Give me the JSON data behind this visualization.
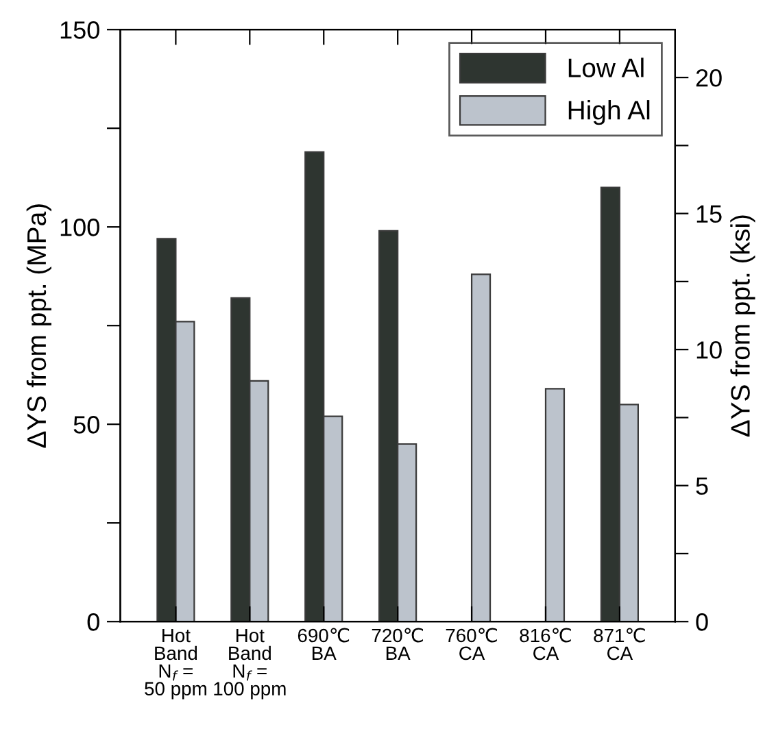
{
  "chart_data": {
    "type": "bar",
    "ylabel": "ΔYS from ppt. (MPa)",
    "y2label": "ΔYS from ppt. (ksi)",
    "categories": [
      "Hot\nBand\nN$_{f}$ =\n50 ppm",
      "Hot\nBand\nN$_{f}$ =\n100 ppm",
      "690℃\nBA",
      "720℃\nBA",
      "760℃\nCA",
      "816℃\nCA",
      "871℃\nCA"
    ],
    "series": [
      {
        "name": "Low Al",
        "color": "#2e3530",
        "values": [
          97,
          82,
          119,
          99,
          null,
          null,
          110
        ]
      },
      {
        "name": "High Al",
        "color": "#bcc3cc",
        "values": [
          76,
          61,
          52,
          45,
          88,
          59,
          55
        ]
      }
    ],
    "ylim": [
      0,
      150
    ],
    "yticks": [
      0,
      {
        "value": 25,
        "label": null
      },
      50,
      {
        "value": 75,
        "label": null
      },
      100,
      {
        "value": 125,
        "label": null
      },
      150
    ],
    "y2lim": [
      0,
      21.76
    ],
    "y2ticks": [
      0,
      {
        "value": 2.5,
        "label": null
      },
      5,
      {
        "value": 7.5,
        "label": null
      },
      10,
      {
        "value": 12.5,
        "label": null
      },
      15,
      {
        "value": 17.5,
        "label": null
      },
      20
    ],
    "legend": "top right",
    "grid": false
  }
}
